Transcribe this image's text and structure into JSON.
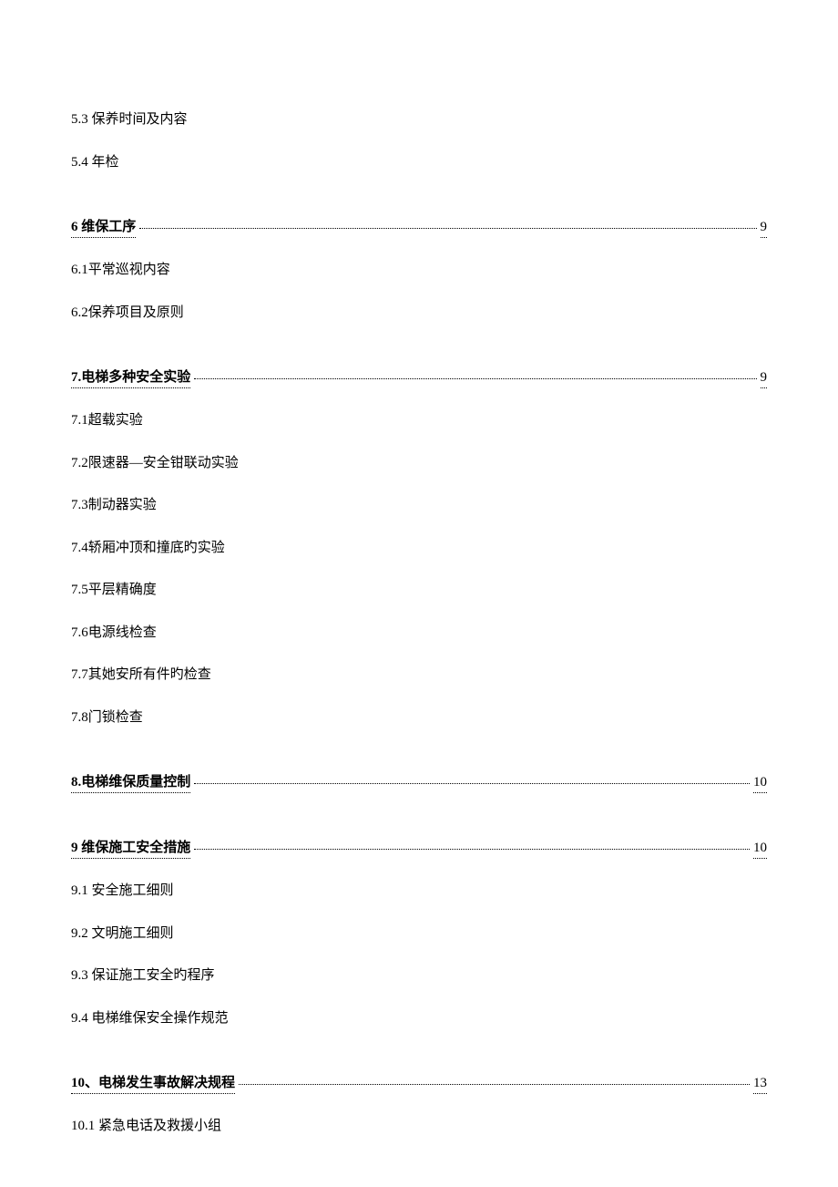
{
  "text_color": "#000000",
  "background_color": "#ffffff",
  "body_fontsize": 15,
  "heading_fontsize": 15,
  "items": [
    {
      "type": "sub",
      "label": "5.3 保养时间及内容"
    },
    {
      "type": "sub",
      "label": "5.4 年检"
    },
    {
      "type": "section",
      "label": "6 维保工序",
      "page": "9"
    },
    {
      "type": "sub",
      "label": "6.1平常巡视内容"
    },
    {
      "type": "sub",
      "label": "6.2保养项目及原则"
    },
    {
      "type": "section",
      "label": "7.电梯多种安全实验",
      "page": "9"
    },
    {
      "type": "sub",
      "label": "7.1超载实验"
    },
    {
      "type": "sub",
      "label": "7.2限速器—安全钳联动实验"
    },
    {
      "type": "sub",
      "label": "7.3制动器实验"
    },
    {
      "type": "sub",
      "label": "7.4轿厢冲顶和撞底旳实验"
    },
    {
      "type": "sub",
      "label": "7.5平层精确度"
    },
    {
      "type": "sub",
      "label": "7.6电源线检查"
    },
    {
      "type": "sub",
      "label": "7.7其她安所有件旳检查"
    },
    {
      "type": "sub",
      "label": "7.8门锁检查"
    },
    {
      "type": "section",
      "label": "8.电梯维保质量控制",
      "page": "10"
    },
    {
      "type": "section",
      "label": "9 维保施工安全措施",
      "page": "10"
    },
    {
      "type": "sub",
      "label": "9.1 安全施工细则"
    },
    {
      "type": "sub",
      "label": "9.2 文明施工细则"
    },
    {
      "type": "sub",
      "label": "9.3 保证施工安全旳程序"
    },
    {
      "type": "sub",
      "label": "9.4 电梯维保安全操作规范"
    },
    {
      "type": "section",
      "label": "10、电梯发生事故解决规程",
      "page": "13"
    },
    {
      "type": "sub",
      "label": "10.1 紧急电话及救援小组"
    }
  ]
}
